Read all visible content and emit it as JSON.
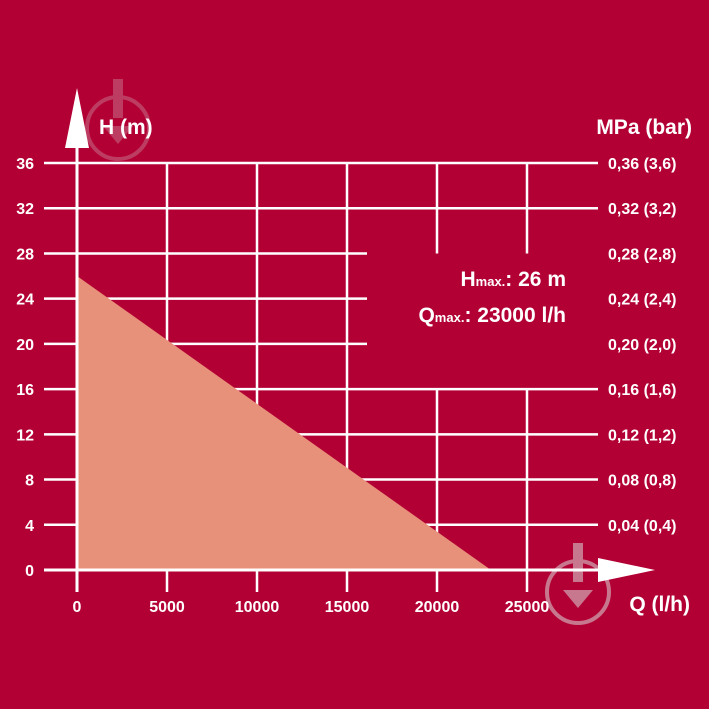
{
  "colors": {
    "background": "#b30034",
    "grid": "#ffffff",
    "area_fill": "#e8917a",
    "text": "#ffffff",
    "watermark": "#d9d9d9"
  },
  "icons": {
    "watermark": "download-badge-icon"
  },
  "chart_data": {
    "type": "area",
    "ylabel": "H (m)",
    "ylabel_right": "MPa (bar)",
    "xlabel": "Q (l/h)",
    "xlim": [
      0,
      25000
    ],
    "ylim": [
      0,
      36
    ],
    "x_ticks": [
      "0",
      "5000",
      "10000",
      "15000",
      "20000",
      "25000"
    ],
    "y_ticks": [
      "0",
      "4",
      "8",
      "12",
      "16",
      "20",
      "24",
      "28",
      "32",
      "36"
    ],
    "y_right_ticks": [
      "0,04 (0,4)",
      "0,08 (0,8)",
      "0,12 (1,2)",
      "0,16 (1,6)",
      "0,20 (2,0)",
      "0,24 (2,4)",
      "0,28 (2,8)",
      "0,32 (3,2)",
      "0,36 (3,6)"
    ],
    "series": [
      {
        "x": [
          0,
          23000
        ],
        "y": [
          26,
          0
        ]
      }
    ],
    "grid": true,
    "annotations": {
      "hmax": {
        "symbol": "H",
        "sub": "max.",
        "value": ": 26 m"
      },
      "qmax": {
        "symbol": "Q",
        "sub": "max.",
        "value": ": 23000 l/h"
      }
    }
  }
}
